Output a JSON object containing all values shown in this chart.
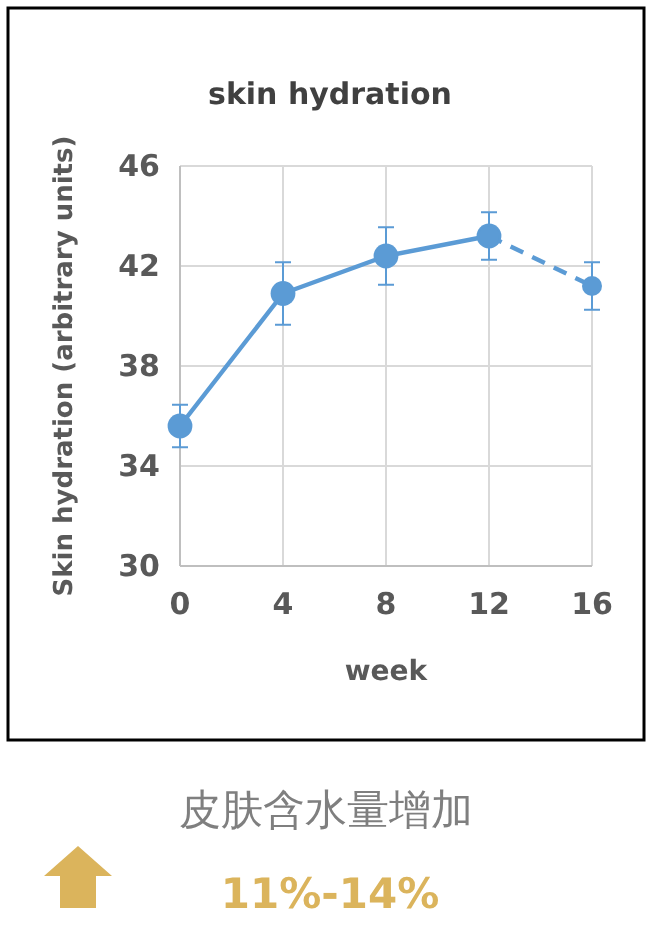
{
  "chart_data": {
    "type": "line",
    "title": "skin hydration",
    "xlabel": "week",
    "ylabel": "Skin hydration (arbitrary units)",
    "xlim": [
      0,
      16
    ],
    "xticks": [
      0,
      4,
      8,
      12,
      16
    ],
    "ylim": [
      30,
      46
    ],
    "yticks": [
      30,
      34,
      38,
      42,
      46
    ],
    "grid": true,
    "marker": "circle",
    "series": [
      {
        "color": "#5b9bd5",
        "line_style": "solid",
        "x": [
          0,
          4,
          8,
          12
        ],
        "values": [
          35.6,
          40.9,
          42.4,
          43.2
        ],
        "errors": [
          0.85,
          1.25,
          1.15,
          0.95
        ]
      },
      {
        "color": "#5b9bd5",
        "line_style": "dashed",
        "x": [
          12,
          16
        ],
        "values": [
          43.2,
          41.2
        ],
        "errors": [
          null,
          0.95
        ]
      }
    ],
    "annotations": [
      "皮肤含水量增加",
      "11%-14%"
    ]
  }
}
